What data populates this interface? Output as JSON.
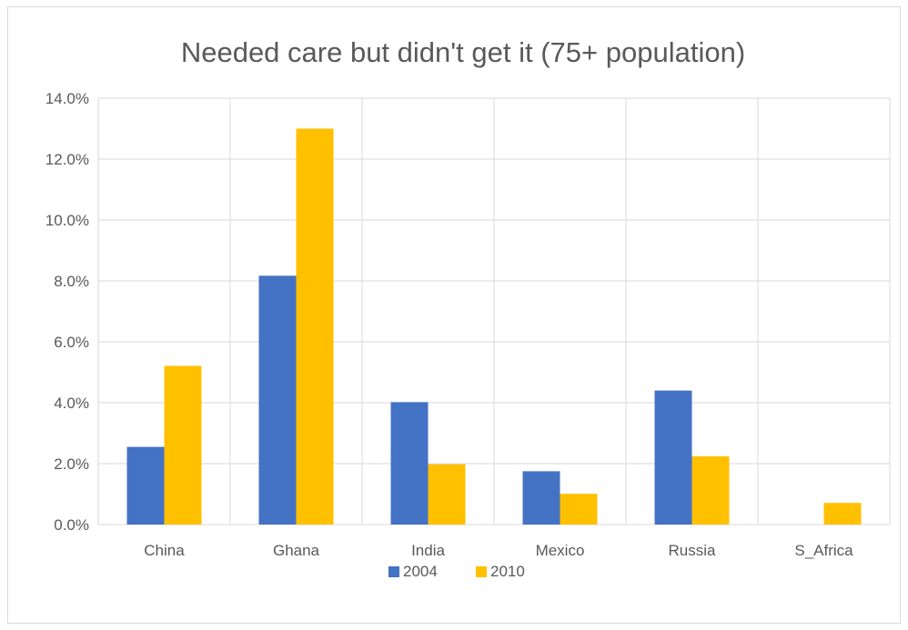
{
  "chart_data": {
    "type": "bar",
    "title": "Needed care but didn't get it (75+ population)",
    "categories": [
      "China",
      "Ghana",
      "India",
      "Mexico",
      "Russia",
      "S_Africa"
    ],
    "series": [
      {
        "name": "2004",
        "color": "#4472c4",
        "values": [
          2.55,
          8.17,
          4.02,
          1.75,
          4.4,
          0.0
        ]
      },
      {
        "name": "2010",
        "color": "#ffc000",
        "values": [
          5.21,
          13.0,
          1.98,
          1.01,
          2.24,
          0.71
        ]
      }
    ],
    "ylim": [
      0,
      14
    ],
    "yticks": [
      "0.0%",
      "2.0%",
      "4.0%",
      "6.0%",
      "8.0%",
      "10.0%",
      "12.0%",
      "14.0%"
    ],
    "ytick_values": [
      0,
      2,
      4,
      6,
      8,
      10,
      12,
      14
    ],
    "grid": true,
    "legend_position": "bottom",
    "colors": {
      "gridline": "#d9d9d9",
      "text": "#595959"
    }
  }
}
